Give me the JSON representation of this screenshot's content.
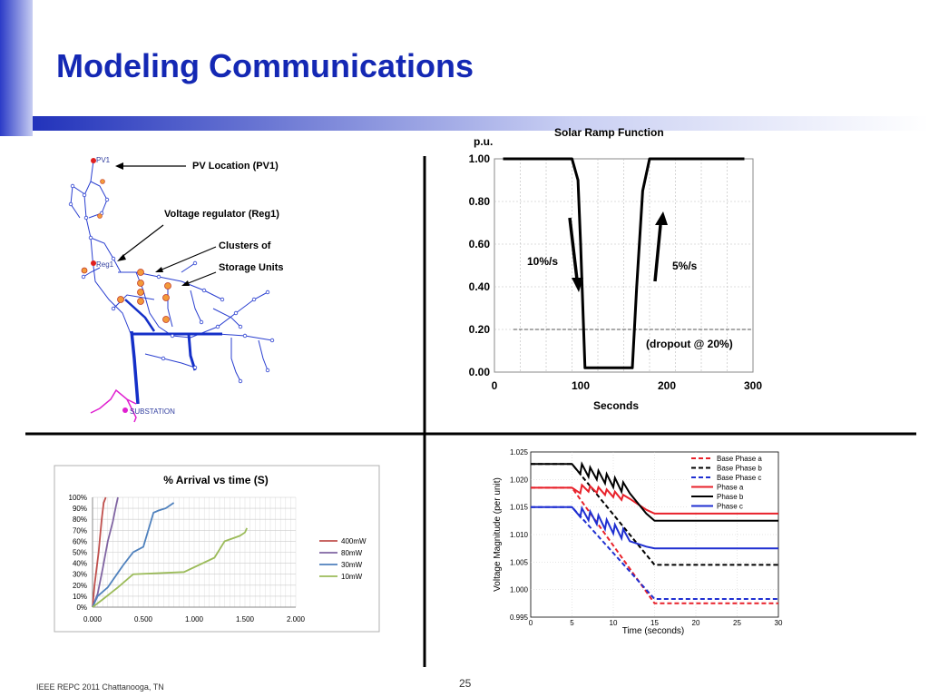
{
  "slide": {
    "title": "Modeling Communications",
    "footer": "IEEE REPC 2011 Chattanooga, TN",
    "page_number": "25"
  },
  "feeder": {
    "labels": {
      "pv_short": "PV1",
      "reg_short": "Reg1",
      "substation": "SUBSTATION"
    },
    "annotations": {
      "pv_location": "PV Location (PV1)",
      "voltage_regulator": "Voltage regulator (Reg1)",
      "clusters_line1": "Clusters of",
      "clusters_line2": "Storage Units"
    }
  },
  "chart_data": [
    {
      "type": "line",
      "title": "Solar Ramp Function",
      "ylabel": "p.u.",
      "xlabel": "Seconds",
      "xlim": [
        0,
        300
      ],
      "ylim": [
        0,
        1
      ],
      "xticks": [
        "0",
        "100",
        "200",
        "300"
      ],
      "yticks": [
        "0.00",
        "0.20",
        "0.40",
        "0.60",
        "0.80",
        "1.00"
      ],
      "series": [
        {
          "x": [
            10,
            90,
            97,
            100,
            105,
            160,
            165,
            172,
            180,
            290
          ],
          "values": [
            1.0,
            1.0,
            0.9,
            0.6,
            0.02,
            0.02,
            0.4,
            0.85,
            1.0,
            1.0
          ]
        }
      ],
      "reference_line": {
        "y": 0.2,
        "style": "dashed"
      },
      "annotations": [
        "10%/s",
        "5%/s",
        "(dropout @ 20%)"
      ],
      "grid": true
    },
    {
      "type": "line",
      "title": "% Arrival vs time (S)",
      "xlim": [
        0,
        2.0
      ],
      "ylim": [
        0,
        100
      ],
      "xticks": [
        "0.000",
        "0.500",
        "1.000",
        "1.500",
        "2.000"
      ],
      "yticks": [
        "0%",
        "10%",
        "20%",
        "30%",
        "40%",
        "50%",
        "60%",
        "70%",
        "80%",
        "90%",
        "100%"
      ],
      "legend_position": "right",
      "grid": true,
      "series": [
        {
          "name": "400mW",
          "color": "#c0504d",
          "x": [
            0.0,
            0.02,
            0.06,
            0.09,
            0.11,
            0.13
          ],
          "values": [
            0,
            20,
            50,
            80,
            95,
            100
          ]
        },
        {
          "name": "80mW",
          "color": "#8064a2",
          "x": [
            0.0,
            0.05,
            0.1,
            0.15,
            0.2,
            0.23,
            0.25
          ],
          "values": [
            0,
            12,
            35,
            60,
            78,
            92,
            100
          ]
        },
        {
          "name": "30mW",
          "color": "#4f81bd",
          "x": [
            0.0,
            0.05,
            0.15,
            0.3,
            0.4,
            0.5,
            0.6,
            0.65,
            0.72,
            0.8
          ],
          "values": [
            0,
            10,
            18,
            38,
            50,
            55,
            86,
            88,
            90,
            95
          ]
        },
        {
          "name": "10mW",
          "color": "#9bbb59",
          "x": [
            0.0,
            0.1,
            0.25,
            0.4,
            0.9,
            1.2,
            1.3,
            1.45,
            1.5,
            1.52
          ],
          "values": [
            0,
            7,
            18,
            30,
            32,
            45,
            60,
            65,
            68,
            72
          ]
        }
      ]
    },
    {
      "type": "line",
      "xlabel": "Time (seconds)",
      "ylabel": "Voltage Magnitude (per unit)",
      "xlim": [
        0,
        30
      ],
      "ylim": [
        0.995,
        1.025
      ],
      "xticks": [
        "0",
        "5",
        "10",
        "15",
        "20",
        "25",
        "30"
      ],
      "yticks": [
        "0.995",
        "1.000",
        "1.005",
        "1.010",
        "1.015",
        "1.020",
        "1.025"
      ],
      "legend_position": "top-right",
      "grid": true,
      "series": [
        {
          "name": "Base Phase a",
          "color": "#e8212a",
          "dash": "5,3",
          "x": [
            0,
            5,
            15,
            30
          ],
          "values": [
            1.0185,
            1.0185,
            0.9975,
            0.9975
          ]
        },
        {
          "name": "Base Phase b",
          "color": "#000000",
          "dash": "5,3",
          "x": [
            0,
            5,
            15,
            30
          ],
          "values": [
            1.0228,
            1.0228,
            1.0045,
            1.0045
          ]
        },
        {
          "name": "Base Phase c",
          "color": "#1f2fd1",
          "dash": "5,3",
          "x": [
            0,
            5,
            15,
            30
          ],
          "values": [
            1.015,
            1.015,
            0.9983,
            0.9983
          ]
        },
        {
          "name": "Phase a",
          "color": "#e8212a",
          "dash": "",
          "x": [
            0,
            5,
            6,
            6.2,
            7,
            7.2,
            8,
            8.2,
            9,
            9.2,
            10,
            10.2,
            11,
            11.2,
            12,
            14,
            15,
            30
          ],
          "values": [
            1.0185,
            1.0185,
            1.0175,
            1.019,
            1.0178,
            1.0188,
            1.0176,
            1.0186,
            1.0172,
            1.0182,
            1.0168,
            1.0178,
            1.0163,
            1.0172,
            1.0165,
            1.0145,
            1.0138,
            1.0138
          ]
        },
        {
          "name": "Phase b",
          "color": "#000000",
          "dash": "",
          "x": [
            0,
            5,
            6,
            6.2,
            7,
            7.2,
            8,
            8.2,
            9,
            9.2,
            10,
            10.2,
            11,
            11.2,
            12,
            14,
            15,
            30
          ],
          "values": [
            1.0228,
            1.0228,
            1.021,
            1.0228,
            1.0205,
            1.0222,
            1.02,
            1.0216,
            1.0193,
            1.021,
            1.0186,
            1.0203,
            1.0178,
            1.0195,
            1.0175,
            1.0138,
            1.0125,
            1.0125
          ]
        },
        {
          "name": "Phase c",
          "color": "#1f2fd1",
          "dash": "",
          "x": [
            0,
            5,
            6,
            6.2,
            7,
            7.2,
            8,
            8.2,
            9,
            9.2,
            10,
            10.2,
            11,
            11.2,
            12,
            14,
            15,
            30
          ],
          "values": [
            1.015,
            1.015,
            1.0132,
            1.0148,
            1.0126,
            1.0142,
            1.0119,
            1.0135,
            1.011,
            1.0127,
            1.0102,
            1.0118,
            1.0093,
            1.011,
            1.0088,
            1.0078,
            1.0075,
            1.0075
          ]
        }
      ]
    }
  ]
}
